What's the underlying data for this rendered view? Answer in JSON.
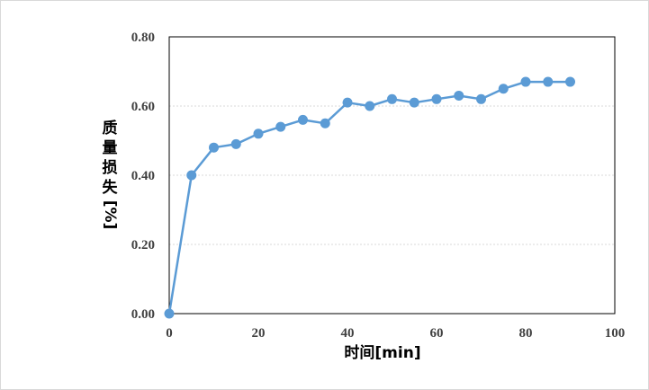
{
  "chart_data": {
    "type": "line",
    "xlabel": "时间[min]",
    "ylabel": "质量损失[%]",
    "xlim": [
      0,
      100
    ],
    "ylim": [
      0,
      0.8
    ],
    "xticks": [
      "0",
      "20",
      "40",
      "60",
      "80",
      "100"
    ],
    "yticks": [
      "0.00",
      "0.20",
      "0.40",
      "0.60",
      "0.80"
    ],
    "grid": "horizontal-dotted",
    "legend": "none",
    "colors": {
      "series": "#5b9bd5",
      "grid": "#d9d9d9",
      "axis": "#000000"
    },
    "series": [
      {
        "x": [
          0,
          5,
          10,
          15,
          20,
          25,
          30,
          35,
          40,
          45,
          50,
          55,
          60,
          65,
          70,
          75,
          80,
          85,
          90
        ],
        "values": [
          0.0,
          0.4,
          0.48,
          0.49,
          0.52,
          0.54,
          0.56,
          0.55,
          0.61,
          0.6,
          0.62,
          0.61,
          0.62,
          0.63,
          0.62,
          0.65,
          0.67,
          0.67,
          0.67
        ]
      }
    ]
  }
}
